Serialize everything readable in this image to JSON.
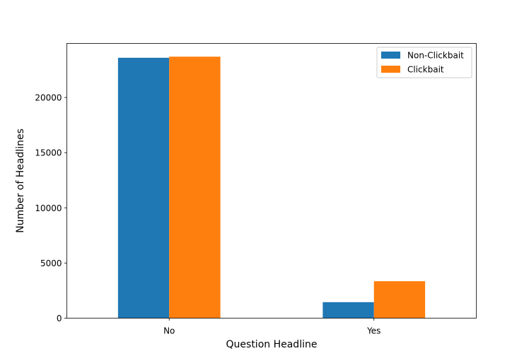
{
  "chart_data": {
    "type": "bar",
    "title": "",
    "xlabel": "Question Headline",
    "ylabel": "Number of Headlines",
    "categories": [
      "No",
      "Yes"
    ],
    "series": [
      {
        "name": "Non-Clickbait",
        "color": "#1f77b4",
        "values": [
          23600,
          1450
        ]
      },
      {
        "name": "Clickbait",
        "color": "#ff7f0e",
        "values": [
          23700,
          3350
        ]
      }
    ],
    "ylim": [
      0,
      24900
    ],
    "yticks": [
      0,
      5000,
      10000,
      15000,
      20000
    ],
    "grid": false,
    "legend_position": "top-right"
  }
}
